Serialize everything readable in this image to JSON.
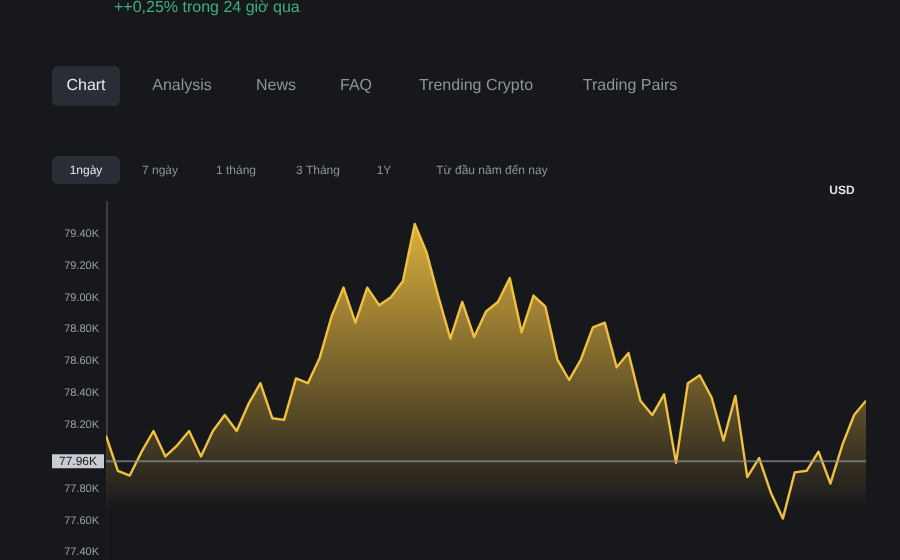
{
  "chart_data": {
    "type": "area",
    "subtitle": "++0,25% trong 24 giờ qua",
    "ylabel": "USD",
    "annotations": [
      "Chart",
      "Analysis",
      "News",
      "FAQ",
      "Trending Crypto",
      "Trading Pairs",
      "1ngày",
      "7 ngày",
      "1 tháng",
      "3 Tháng",
      "1Y",
      "Từ đầu năm đến nay"
    ],
    "categories": [
      null,
      null,
      null,
      null,
      null,
      null,
      null,
      null,
      null,
      null,
      null,
      null,
      null,
      null,
      null,
      null,
      null,
      null,
      null,
      null,
      null,
      null,
      null,
      null,
      null,
      null,
      null,
      null,
      null,
      null,
      null,
      null,
      null,
      null,
      null,
      null,
      null,
      null,
      null,
      null,
      null,
      null,
      null,
      null,
      null,
      null,
      null,
      null,
      null,
      null,
      null,
      null,
      null,
      null,
      null,
      null,
      null,
      null,
      null,
      null,
      null,
      null,
      null,
      null,
      null
    ],
    "series": [
      {
        "color": "#f0c040",
        "values": [
          78.12,
          77.9,
          77.87,
          78.02,
          78.15,
          77.99,
          78.06,
          78.15,
          77.99,
          78.15,
          78.25,
          78.15,
          78.32,
          78.45,
          78.23,
          78.22,
          78.48,
          78.45,
          78.61,
          78.87,
          79.05,
          78.83,
          79.05,
          78.94,
          78.99,
          79.09,
          79.45,
          79.27,
          78.99,
          78.73,
          78.96,
          78.74,
          78.9,
          78.96,
          79.11,
          78.77,
          79.0,
          78.93,
          78.6,
          78.47,
          78.6,
          78.8,
          78.83,
          78.55,
          78.64,
          78.34,
          78.25,
          78.38,
          77.95,
          78.45,
          78.5,
          78.36,
          78.09,
          78.37,
          77.86,
          77.98,
          77.76,
          77.6,
          77.89,
          77.9,
          78.02,
          77.82,
          78.06,
          78.25,
          78.34
        ]
      }
    ],
    "ylim": [
      77.34,
      79.6
    ],
    "yticks": [
      {
        "value": 77.4,
        "label": "77.40K"
      },
      {
        "value": 77.6,
        "label": "77.60K"
      },
      {
        "value": 77.8,
        "label": "77.80K"
      },
      {
        "value": 78.2,
        "label": "78.20K"
      },
      {
        "value": 78.4,
        "label": "78.40K"
      },
      {
        "value": 78.6,
        "label": "78.60K"
      },
      {
        "value": 78.8,
        "label": "78.80K"
      },
      {
        "value": 79.0,
        "label": "79.00K"
      },
      {
        "value": 79.2,
        "label": "79.20K"
      },
      {
        "value": 79.4,
        "label": "79.40K"
      }
    ],
    "tick_labels": "y",
    "grid": false,
    "ref_lines": [
      {
        "axis": "y",
        "value": 77.96,
        "label": "77.96K",
        "color": "#8a8d96"
      }
    ]
  }
}
